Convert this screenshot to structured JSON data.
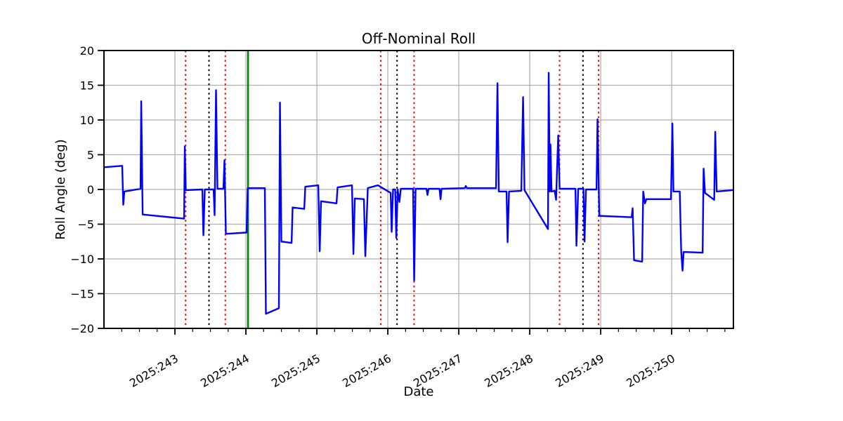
{
  "chart_data": {
    "type": "line",
    "title": "Off-Nominal Roll",
    "xlabel": "Date",
    "ylabel": "Roll Angle (deg)",
    "xlim": [
      242.0,
      250.87
    ],
    "ylim": [
      -20,
      20
    ],
    "grid": true,
    "x_major_ticks": [
      {
        "value": 243,
        "label": "2025:243"
      },
      {
        "value": 244,
        "label": "2025:244"
      },
      {
        "value": 245,
        "label": "2025:245"
      },
      {
        "value": 246,
        "label": "2025:246"
      },
      {
        "value": 247,
        "label": "2025:247"
      },
      {
        "value": 248,
        "label": "2025:248"
      },
      {
        "value": 249,
        "label": "2025:249"
      },
      {
        "value": 250,
        "label": "2025:250"
      }
    ],
    "x_minor_tick_step": 0.25,
    "y_ticks": [
      {
        "value": -20,
        "label": "−20"
      },
      {
        "value": -15,
        "label": "−15"
      },
      {
        "value": -10,
        "label": "−10"
      },
      {
        "value": -5,
        "label": "−5"
      },
      {
        "value": 0,
        "label": "0"
      },
      {
        "value": 5,
        "label": "5"
      },
      {
        "value": 10,
        "label": "10"
      },
      {
        "value": 15,
        "label": "15"
      },
      {
        "value": 20,
        "label": "20"
      }
    ],
    "series": [
      {
        "name": "roll-angle",
        "color": "#0000ff",
        "points": [
          [
            242.01,
            3.2
          ],
          [
            242.257,
            3.4
          ],
          [
            242.272,
            -2.2
          ],
          [
            242.287,
            -0.3
          ],
          [
            242.515,
            0.1
          ],
          [
            242.525,
            12.7
          ],
          [
            242.545,
            -3.6
          ],
          [
            243.129,
            -4.2
          ],
          [
            243.139,
            6.2
          ],
          [
            243.153,
            -0.1
          ],
          [
            243.386,
            0.0
          ],
          [
            243.401,
            -6.6
          ],
          [
            243.421,
            0.0
          ],
          [
            243.545,
            0.0
          ],
          [
            243.559,
            -3.7
          ],
          [
            243.579,
            14.3
          ],
          [
            243.599,
            0.1
          ],
          [
            243.683,
            0.1
          ],
          [
            243.698,
            4.2
          ],
          [
            243.718,
            -6.4
          ],
          [
            244.01,
            -6.2
          ],
          [
            244.025,
            0.2
          ],
          [
            244.267,
            0.2
          ],
          [
            244.282,
            -17.9
          ],
          [
            244.465,
            -17.1
          ],
          [
            244.48,
            12.5
          ],
          [
            244.5,
            -7.5
          ],
          [
            244.644,
            -7.7
          ],
          [
            244.658,
            -2.6
          ],
          [
            244.822,
            -2.8
          ],
          [
            244.837,
            0.4
          ],
          [
            245.02,
            0.6
          ],
          [
            245.04,
            -8.9
          ],
          [
            245.059,
            -1.7
          ],
          [
            245.277,
            -2.0
          ],
          [
            245.292,
            0.3
          ],
          [
            245.495,
            0.6
          ],
          [
            245.515,
            -9.3
          ],
          [
            245.535,
            -1.3
          ],
          [
            245.663,
            -1.4
          ],
          [
            245.683,
            -9.6
          ],
          [
            245.718,
            0.2
          ],
          [
            245.861,
            0.6
          ],
          [
            246.04,
            -0.5
          ],
          [
            246.054,
            -6.1
          ],
          [
            246.074,
            0.0
          ],
          [
            246.104,
            0.0
          ],
          [
            246.119,
            -7.0
          ],
          [
            246.139,
            0.0
          ],
          [
            246.163,
            -1.8
          ],
          [
            246.183,
            0.1
          ],
          [
            246.356,
            0.1
          ],
          [
            246.371,
            -13.1
          ],
          [
            246.391,
            0.1
          ],
          [
            246.545,
            0.1
          ],
          [
            246.559,
            -0.8
          ],
          [
            246.574,
            0.1
          ],
          [
            246.728,
            0.1
          ],
          [
            246.743,
            -1.4
          ],
          [
            246.757,
            0.1
          ],
          [
            247.084,
            0.2
          ],
          [
            247.099,
            0.5
          ],
          [
            247.114,
            0.2
          ],
          [
            247.525,
            0.2
          ],
          [
            247.545,
            15.3
          ],
          [
            247.564,
            -0.3
          ],
          [
            247.673,
            -0.3
          ],
          [
            247.688,
            -7.6
          ],
          [
            247.708,
            -0.3
          ],
          [
            247.881,
            -0.2
          ],
          [
            247.906,
            13.3
          ],
          [
            247.926,
            -0.1
          ],
          [
            248.257,
            -5.7
          ],
          [
            248.267,
            16.8
          ],
          [
            248.282,
            -0.3
          ],
          [
            248.292,
            6.5
          ],
          [
            248.307,
            -0.3
          ],
          [
            248.351,
            -0.2
          ],
          [
            248.371,
            -1.5
          ],
          [
            248.401,
            7.8
          ],
          [
            248.421,
            0.1
          ],
          [
            248.644,
            0.1
          ],
          [
            248.658,
            -8.1
          ],
          [
            248.683,
            0.1
          ],
          [
            248.757,
            0.1
          ],
          [
            248.772,
            -7.5
          ],
          [
            248.792,
            0.0
          ],
          [
            248.941,
            0.0
          ],
          [
            248.955,
            10.1
          ],
          [
            248.98,
            -3.8
          ],
          [
            249.436,
            -4.0
          ],
          [
            249.45,
            -2.7
          ],
          [
            249.47,
            -10.2
          ],
          [
            249.584,
            -10.4
          ],
          [
            249.599,
            -0.3
          ],
          [
            249.624,
            -2.0
          ],
          [
            249.644,
            -1.4
          ],
          [
            249.99,
            -1.4
          ],
          [
            250.01,
            9.5
          ],
          [
            250.025,
            -0.3
          ],
          [
            250.114,
            -0.3
          ],
          [
            250.134,
            -8.9
          ],
          [
            250.153,
            -11.7
          ],
          [
            250.168,
            -9.0
          ],
          [
            250.436,
            -9.1
          ],
          [
            250.45,
            3.0
          ],
          [
            250.47,
            -0.5
          ],
          [
            250.599,
            -1.5
          ],
          [
            250.614,
            8.3
          ],
          [
            250.634,
            -0.3
          ],
          [
            250.861,
            -0.1
          ]
        ]
      }
    ],
    "vlines": [
      {
        "x": 243.15,
        "color": "#ff0000",
        "style": "dotted"
      },
      {
        "x": 243.48,
        "color": "#000000",
        "style": "dotted"
      },
      {
        "x": 243.71,
        "color": "#ff0000",
        "style": "dotted"
      },
      {
        "x": 244.03,
        "color": "#008000",
        "style": "solid"
      },
      {
        "x": 245.9,
        "color": "#ff0000",
        "style": "dotted"
      },
      {
        "x": 246.13,
        "color": "#000000",
        "style": "dotted"
      },
      {
        "x": 246.37,
        "color": "#ff0000",
        "style": "dotted"
      },
      {
        "x": 248.42,
        "color": "#ff0000",
        "style": "dotted"
      },
      {
        "x": 248.75,
        "color": "#000000",
        "style": "dotted"
      },
      {
        "x": 248.97,
        "color": "#ff0000",
        "style": "dotted"
      }
    ],
    "colors": {
      "line": "#0000ff",
      "grid": "#b0b0b0",
      "spine": "#000000",
      "marker_red": "#ff0000",
      "marker_black": "#000000",
      "marker_green": "#008000",
      "background": "#ffffff"
    },
    "legend": null
  }
}
